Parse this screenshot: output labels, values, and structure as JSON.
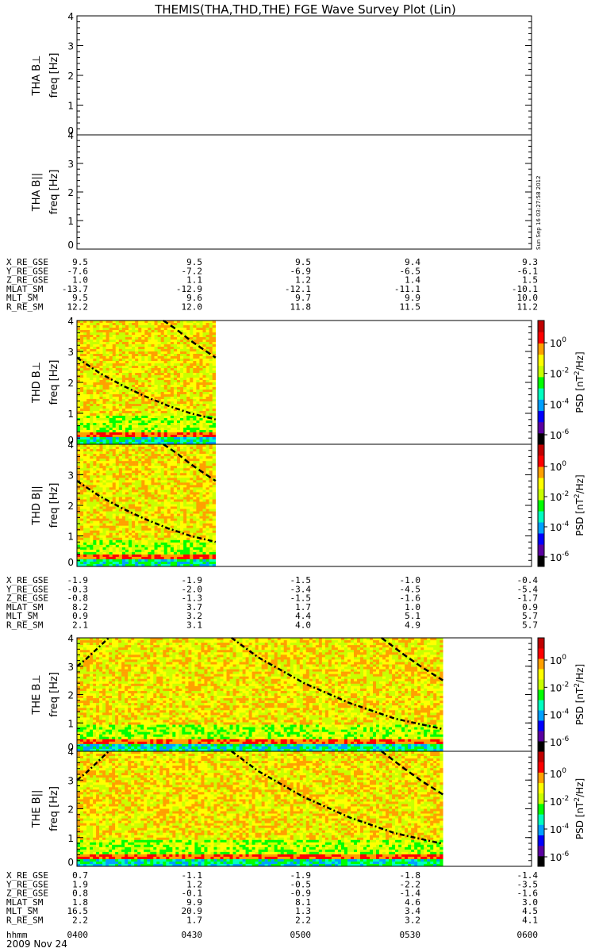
{
  "title": "THEMIS(THA,THD,THE) FGE Wave Survey Plot (Lin)",
  "timestamp": "Sun Sep 16 03:27:58 2012",
  "date": "2009 Nov 24",
  "colors": {
    "frame": "#000000",
    "background": "#ffffff",
    "curve": "#000000"
  },
  "colorbar": {
    "label_parts": [
      "PSD [nT",
      "2",
      "/Hz]"
    ],
    "ticks": [
      {
        "base": "10",
        "exp": "0"
      },
      {
        "base": "10",
        "exp": "-2"
      },
      {
        "base": "10",
        "exp": "-4"
      },
      {
        "base": "10",
        "exp": "-6"
      }
    ],
    "colormap": [
      "#000000",
      "#5a00a0",
      "#0000ff",
      "#00a0ff",
      "#00ffc0",
      "#00ff00",
      "#c8ff00",
      "#ffff00",
      "#ffa000",
      "#ff0000",
      "#c00000"
    ]
  },
  "chart_data": [
    {
      "type": "heatmap",
      "probe": "THA",
      "component": "B⊥",
      "ylabel": "freq [Hz]",
      "ylim": [
        0,
        4
      ],
      "yticks": [
        "0",
        "1",
        "2",
        "3",
        "4"
      ],
      "data_present": false
    },
    {
      "type": "heatmap",
      "probe": "THA",
      "component": "B||",
      "ylabel": "freq [Hz]",
      "ylim": [
        0,
        4
      ],
      "yticks": [
        "0",
        "1",
        "2",
        "3",
        "4"
      ],
      "data_present": false
    },
    {
      "type": "heatmap",
      "probe": "THD",
      "component": "B⊥",
      "ylabel": "freq [Hz]",
      "ylim": [
        0,
        4
      ],
      "yticks": [
        "0",
        "1",
        "2",
        "3",
        "4"
      ],
      "data_present": true,
      "time_range_frac": [
        0,
        0.305
      ],
      "curves": [
        {
          "style": "dashdot",
          "points": [
            [
              0.0,
              2.8
            ],
            [
              0.05,
              2.3
            ],
            [
              0.1,
              1.9
            ],
            [
              0.15,
              1.55
            ],
            [
              0.2,
              1.25
            ],
            [
              0.25,
              1.0
            ],
            [
              0.3,
              0.82
            ],
            [
              0.305,
              0.8
            ]
          ]
        },
        {
          "style": "dashed",
          "points": [
            [
              0.19,
              4.0
            ],
            [
              0.22,
              3.7
            ],
            [
              0.25,
              3.35
            ],
            [
              0.28,
              3.05
            ],
            [
              0.305,
              2.8
            ]
          ]
        }
      ]
    },
    {
      "type": "heatmap",
      "probe": "THD",
      "component": "B||",
      "ylabel": "freq [Hz]",
      "ylim": [
        0,
        4
      ],
      "yticks": [
        "0",
        "1",
        "2",
        "3",
        "4"
      ],
      "data_present": true,
      "time_range_frac": [
        0,
        0.305
      ],
      "curves": [
        {
          "style": "dashdot",
          "points": [
            [
              0.0,
              2.8
            ],
            [
              0.05,
              2.3
            ],
            [
              0.1,
              1.9
            ],
            [
              0.15,
              1.55
            ],
            [
              0.2,
              1.25
            ],
            [
              0.25,
              1.0
            ],
            [
              0.3,
              0.82
            ],
            [
              0.305,
              0.8
            ]
          ]
        },
        {
          "style": "dashed",
          "points": [
            [
              0.19,
              4.0
            ],
            [
              0.22,
              3.7
            ],
            [
              0.25,
              3.35
            ],
            [
              0.28,
              3.05
            ],
            [
              0.305,
              2.8
            ]
          ]
        }
      ]
    },
    {
      "type": "heatmap",
      "probe": "THE",
      "component": "B⊥",
      "ylabel": "freq [Hz]",
      "ylim": [
        0,
        4
      ],
      "yticks": [
        "0",
        "1",
        "2",
        "3",
        "4"
      ],
      "data_present": true,
      "time_range_frac": [
        0,
        0.805
      ],
      "curves": [
        {
          "style": "dashdot",
          "points": [
            [
              0.0,
              3.0
            ],
            [
              0.02,
              3.25
            ],
            [
              0.04,
              3.55
            ],
            [
              0.07,
              4.0
            ]
          ]
        },
        {
          "style": "dashdot",
          "points": [
            [
              0.34,
              4.0
            ],
            [
              0.4,
              3.3
            ],
            [
              0.5,
              2.4
            ],
            [
              0.6,
              1.7
            ],
            [
              0.7,
              1.15
            ],
            [
              0.8,
              0.8
            ],
            [
              0.805,
              0.78
            ]
          ]
        },
        {
          "style": "dashed",
          "points": [
            [
              0.67,
              4.0
            ],
            [
              0.72,
              3.4
            ],
            [
              0.76,
              2.95
            ],
            [
              0.805,
              2.5
            ]
          ]
        }
      ]
    },
    {
      "type": "heatmap",
      "probe": "THE",
      "component": "B||",
      "ylabel": "freq [Hz]",
      "ylim": [
        0,
        4
      ],
      "yticks": [
        "0",
        "1",
        "2",
        "3",
        "4"
      ],
      "data_present": true,
      "time_range_frac": [
        0,
        0.805
      ],
      "curves": [
        {
          "style": "dashdot",
          "points": [
            [
              0.0,
              3.0
            ],
            [
              0.02,
              3.25
            ],
            [
              0.04,
              3.55
            ],
            [
              0.07,
              4.0
            ]
          ]
        },
        {
          "style": "dashdot",
          "points": [
            [
              0.34,
              4.0
            ],
            [
              0.4,
              3.3
            ],
            [
              0.5,
              2.4
            ],
            [
              0.6,
              1.7
            ],
            [
              0.7,
              1.15
            ],
            [
              0.8,
              0.8
            ],
            [
              0.805,
              0.78
            ]
          ]
        },
        {
          "style": "dashed",
          "points": [
            [
              0.67,
              4.0
            ],
            [
              0.72,
              3.4
            ],
            [
              0.76,
              2.95
            ],
            [
              0.805,
              2.5
            ]
          ]
        }
      ]
    }
  ],
  "ephemeris": [
    {
      "rows": [
        {
          "label": "X_RE_GSE",
          "values": [
            "9.5",
            "9.5",
            "9.5",
            "9.4",
            "9.3"
          ]
        },
        {
          "label": "Y_RE_GSE",
          "values": [
            "-7.6",
            "-7.2",
            "-6.9",
            "-6.5",
            "-6.1"
          ]
        },
        {
          "label": "Z_RE_GSE",
          "values": [
            "1.0",
            "1.1",
            "1.2",
            "1.4",
            "1.5"
          ]
        },
        {
          "label": "MLAT_SM",
          "values": [
            "-13.7",
            "-12.9",
            "-12.1",
            "-11.1",
            "-10.1"
          ]
        },
        {
          "label": "MLT_SM",
          "values": [
            "9.5",
            "9.6",
            "9.7",
            "9.9",
            "10.0"
          ]
        },
        {
          "label": "R_RE_SM",
          "values": [
            "12.2",
            "12.0",
            "11.8",
            "11.5",
            "11.2"
          ]
        }
      ]
    },
    {
      "rows": [
        {
          "label": "X_RE_GSE",
          "values": [
            "-1.9",
            "-1.9",
            "-1.5",
            "-1.0",
            "-0.4"
          ]
        },
        {
          "label": "Y_RE_GSE",
          "values": [
            "-0.3",
            "-2.0",
            "-3.4",
            "-4.5",
            "-5.4"
          ]
        },
        {
          "label": "Z_RE_GSE",
          "values": [
            "-0.8",
            "-1.3",
            "-1.5",
            "-1.6",
            "-1.7"
          ]
        },
        {
          "label": "MLAT_SM",
          "values": [
            "8.2",
            "3.7",
            "1.7",
            "1.0",
            "0.9"
          ]
        },
        {
          "label": "MLT_SM",
          "values": [
            "0.9",
            "3.2",
            "4.4",
            "5.1",
            "5.7"
          ]
        },
        {
          "label": "R_RE_SM",
          "values": [
            "2.1",
            "3.1",
            "4.0",
            "4.9",
            "5.7"
          ]
        }
      ]
    },
    {
      "rows": [
        {
          "label": "X_RE_GSE",
          "values": [
            "0.7",
            "-1.1",
            "-1.9",
            "-1.8",
            "-1.4"
          ]
        },
        {
          "label": "Y_RE_GSE",
          "values": [
            "1.9",
            "1.2",
            "-0.5",
            "-2.2",
            "-3.5"
          ]
        },
        {
          "label": "Z_RE_GSE",
          "values": [
            "0.8",
            "-0.1",
            "-0.9",
            "-1.4",
            "-1.6"
          ]
        },
        {
          "label": "MLAT_SM",
          "values": [
            "1.8",
            "9.9",
            "8.1",
            "4.6",
            "3.0"
          ]
        },
        {
          "label": "MLT_SM",
          "values": [
            "16.5",
            "20.9",
            "1.3",
            "3.4",
            "4.5"
          ]
        },
        {
          "label": "R_RE_SM",
          "values": [
            "2.2",
            "1.7",
            "2.2",
            "3.2",
            "4.1"
          ]
        }
      ]
    }
  ],
  "time_axis": {
    "label": "hhmm",
    "ticks": [
      "0400",
      "0430",
      "0500",
      "0530",
      "0600"
    ]
  }
}
